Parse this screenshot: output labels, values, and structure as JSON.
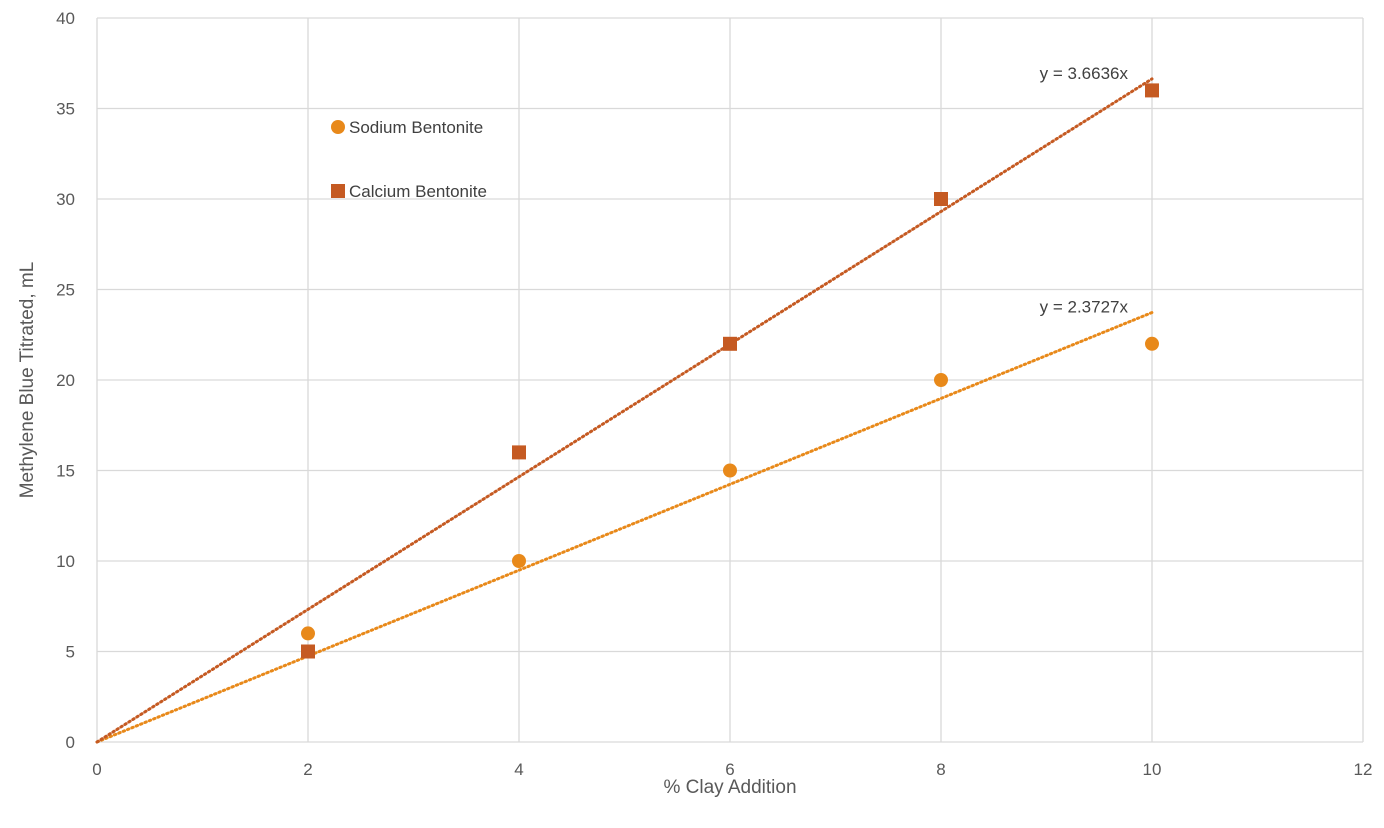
{
  "chart_data": {
    "type": "scatter",
    "xlabel": "% Clay Addition",
    "ylabel": "Methylene Blue Titrated, mL",
    "xlim": [
      0,
      12
    ],
    "ylim": [
      0,
      40
    ],
    "x_ticks": [
      "0",
      "2",
      "4",
      "6",
      "8",
      "10",
      "12"
    ],
    "y_ticks": [
      "0",
      "5",
      "10",
      "15",
      "20",
      "25",
      "30",
      "35",
      "40"
    ],
    "grid": true,
    "legend_position": "upper-left inside plot",
    "series": [
      {
        "name": "Sodium Bentonite",
        "marker": "circle",
        "color": "#E8891A",
        "x": [
          2,
          4,
          6,
          8,
          10
        ],
        "y": [
          6,
          10,
          15,
          20,
          22
        ],
        "trendline": {
          "type": "linear-through-origin",
          "slope": 2.3727,
          "label": "y = 2.3727x",
          "color": "#E8891A"
        }
      },
      {
        "name": "Calcium Bentonite",
        "marker": "square",
        "color": "#C55A22",
        "x": [
          2,
          4,
          6,
          8,
          10
        ],
        "y": [
          5,
          16,
          22,
          30,
          36
        ],
        "trendline": {
          "type": "linear-through-origin",
          "slope": 3.6636,
          "label": "y = 3.6636x",
          "color": "#C55A22"
        }
      }
    ]
  }
}
